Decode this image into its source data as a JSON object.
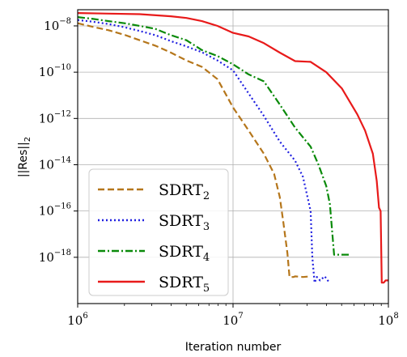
{
  "chart_data": {
    "type": "line",
    "title": "",
    "xlabel": "Iteration number",
    "ylabel_parts": [
      "||Res||",
      "2"
    ],
    "x_scale": "log",
    "y_scale": "log",
    "xlim": [
      1000000,
      100000000
    ],
    "ylim": [
      1e-20,
      5e-08
    ],
    "grid": true,
    "x_ticks": [
      {
        "value": 1000000,
        "base": "10",
        "exp": "6"
      },
      {
        "value": 10000000,
        "base": "10",
        "exp": "7"
      },
      {
        "value": 100000000,
        "base": "10",
        "exp": "8"
      }
    ],
    "y_ticks": [
      {
        "value": 1e-08,
        "base": "10",
        "exp": "−8"
      },
      {
        "value": 1e-10,
        "base": "10",
        "exp": "−10"
      },
      {
        "value": 1e-12,
        "base": "10",
        "exp": "−12"
      },
      {
        "value": 1e-14,
        "base": "10",
        "exp": "−14"
      },
      {
        "value": 1e-16,
        "base": "10",
        "exp": "−16"
      },
      {
        "value": 1e-18,
        "base": "10",
        "exp": "−18"
      }
    ],
    "legend_position": "lower-left",
    "series": [
      {
        "name": "SDRT",
        "sub": "2",
        "color": "#b5761b",
        "dash": "8,4",
        "x": [
          1000000,
          1260000,
          1580000,
          2000000,
          2510000,
          3160000,
          3980000,
          5010000,
          6310000,
          7940000,
          10000000,
          12600000,
          15800000,
          18400000,
          20000000,
          21100000,
          22400000,
          23100000,
          23700000,
          24500000,
          25100000,
          28200000,
          31600000
        ],
        "y": [
          1.3e-08,
          9e-09,
          6.5e-09,
          4.1e-09,
          2.4e-09,
          1.4e-09,
          7e-10,
          3.2e-10,
          1.7e-10,
          5e-11,
          3e-12,
          3e-13,
          3e-14,
          4e-15,
          4e-16,
          3e-17,
          1.5e-18,
          1.4e-19,
          1.4e-19,
          1.4e-19,
          1.5e-19,
          1.4e-19,
          1.5e-19
        ]
      },
      {
        "name": "SDRT",
        "sub": "3",
        "color": "#1f1fe0",
        "dash": "2,3",
        "x": [
          1000000,
          1260000,
          1580000,
          2000000,
          2510000,
          3160000,
          3980000,
          5010000,
          6310000,
          7940000,
          10000000,
          12600000,
          15800000,
          20000000,
          25100000,
          28200000,
          31600000,
          32400000,
          33500000,
          34700000,
          36300000,
          38900000,
          41700000
        ],
        "y": [
          1.8e-08,
          1.5e-08,
          1.2e-08,
          8.8e-09,
          6e-09,
          4e-09,
          2.2e-09,
          1.3e-09,
          7.3e-10,
          3.2e-10,
          1.2e-10,
          1.2e-11,
          1.3e-12,
          1e-13,
          1.5e-14,
          3e-15,
          1e-16,
          1e-18,
          8e-20,
          1.4e-19,
          1e-19,
          1.5e-19,
          8e-20
        ]
      },
      {
        "name": "SDRT",
        "sub": "4",
        "color": "#0a8a0a",
        "dash": "9,3,2,3",
        "x": [
          1000000,
          1260000,
          1580000,
          2000000,
          2510000,
          3160000,
          3980000,
          5010000,
          6310000,
          7940000,
          10000000,
          12600000,
          15800000,
          20000000,
          25100000,
          31600000,
          35500000,
          39800000,
          42000000,
          44700000,
          50100000,
          56200000
        ],
        "y": [
          2.4e-08,
          2e-08,
          1.6e-08,
          1.3e-08,
          1e-08,
          7.5e-09,
          4e-09,
          2.4e-09,
          9e-10,
          5e-10,
          2.2e-10,
          8e-11,
          4e-11,
          4e-12,
          4e-13,
          6e-14,
          1e-14,
          1.2e-15,
          2e-16,
          1.3e-18,
          1.3e-18,
          1.3e-18
        ]
      },
      {
        "name": "SDRT",
        "sub": "5",
        "color": "#e81a1a",
        "dash": "",
        "x": [
          1000000,
          1580000,
          2510000,
          3980000,
          5010000,
          6310000,
          7940000,
          10000000,
          12600000,
          15800000,
          20000000,
          25100000,
          31600000,
          39800000,
          50100000,
          63100000,
          70800000,
          79400000,
          84100000,
          87000000,
          89100000,
          89700000,
          90600000,
          91200000,
          93300000,
          96000000,
          100000000
        ],
        "y": [
          3.6e-08,
          3.4e-08,
          3.2e-08,
          2.6e-08,
          2.2e-08,
          1.6e-08,
          1e-08,
          5e-09,
          3.5e-09,
          1.8e-09,
          7e-10,
          3e-10,
          2.8e-10,
          1e-10,
          2e-11,
          1.5e-12,
          3e-13,
          3e-14,
          2e-15,
          1.4e-16,
          1e-16,
          8e-18,
          8e-20,
          8e-20,
          8e-20,
          1e-19,
          1e-19
        ]
      }
    ]
  }
}
